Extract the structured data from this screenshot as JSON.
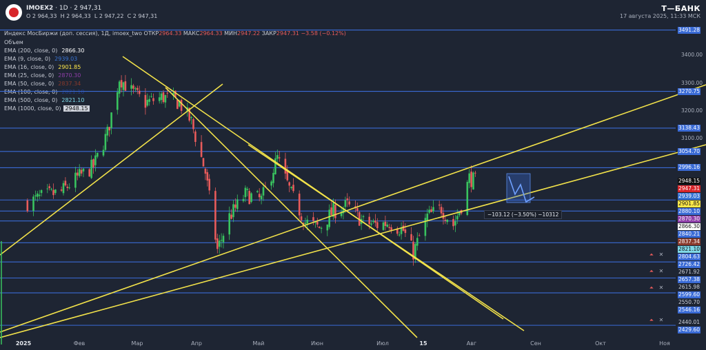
{
  "header": {
    "symbol": "IMOEX2",
    "interval": "1D",
    "last": "2 947,31",
    "open": "О 2 964,33",
    "high": "H 2 964,33",
    "low": "L 2 947,22",
    "close": "C 2 947,31",
    "brand": "Т—БАНК",
    "datetime": "17 августа 2025, 11:33 МСК"
  },
  "info": {
    "name": "Индекс МосБиржи (доп. сессия), 1Д, imoex_two",
    "open_label": "ОТКР",
    "open_value": "2964.33",
    "high_label": "МАКС",
    "high_value": "2964.33",
    "low_label": "МИН",
    "low_value": "2947.22",
    "close_label": "ЗАКР",
    "close_value": "2947.31",
    "change": "−3.58 (−0.12%)"
  },
  "legend": [
    {
      "label": "Объем",
      "value": "",
      "color": "#c8ccd6"
    },
    {
      "label": "EMA (200, close, 0)",
      "value": "2866.30",
      "color": "#ffffff"
    },
    {
      "label": "EMA (9, close, 0)",
      "value": "2939.03",
      "color": "#3a76d6"
    },
    {
      "label": "EMA (16, close, 0)",
      "value": "2901.85",
      "color": "#ffe94a"
    },
    {
      "label": "EMA (25, close, 0)",
      "value": "2870.30",
      "color": "#8e3ea8"
    },
    {
      "label": "EMA (50, close, 0)",
      "value": "2837.34",
      "color": "#8a3a2c"
    },
    {
      "label": "EMA (100, close, 0)",
      "value": "2821.10",
      "color": "#1f3a8a"
    },
    {
      "label": "EMA (500, close, 0)",
      "value": "2821.10",
      "color": "#7fd9e8"
    },
    {
      "label": "EMA (1000, close, 0)",
      "value": "2948.15",
      "color": "#101010"
    }
  ],
  "y_ticks": [
    "3400.00",
    "3300.00",
    "3200.00",
    "3100.00"
  ],
  "price_labels": [
    {
      "value": "3491.28",
      "bg": "#3a6bd6"
    },
    {
      "value": "3270.75",
      "bg": "#3a6bd6"
    },
    {
      "value": "3138.43",
      "bg": "#3a6bd6"
    },
    {
      "value": "3054.70",
      "bg": "#3a6bd6"
    },
    {
      "value": "2996.16",
      "bg": "#3a6bd6"
    },
    {
      "value": "2948.15",
      "bg": "#101010"
    },
    {
      "value": "2947.31",
      "bg": "#d8262a"
    },
    {
      "value": "2939.03",
      "bg": "#3a76d6"
    },
    {
      "value": "2901.85",
      "bg": "#ffe94a"
    },
    {
      "value": "2880.10",
      "bg": "#3a6bd6"
    },
    {
      "value": "2870.30",
      "bg": "#8e3ea8"
    },
    {
      "value": "2866.30",
      "bg": "#ffffff"
    },
    {
      "value": "2840.21",
      "bg": "#3a6bd6"
    },
    {
      "value": "2837.34",
      "bg": "#8a3a2c"
    },
    {
      "value": "2821.10",
      "bg": "#7fd9e8"
    },
    {
      "value": "2804.63",
      "bg": "#3a6bd6"
    },
    {
      "value": "2726.42",
      "bg": "#3a6bd6"
    },
    {
      "value": "2671.92",
      "bg": "#1e2533"
    },
    {
      "value": "2657.38",
      "bg": "#3a6bd6"
    },
    {
      "value": "2615.98",
      "bg": "#1e2533"
    },
    {
      "value": "2599.60",
      "bg": "#3a6bd6"
    },
    {
      "value": "2550.70",
      "bg": "#1e2533"
    },
    {
      "value": "2546.16",
      "bg": "#3a6bd6"
    },
    {
      "value": "2440.01",
      "bg": "#1e2533"
    },
    {
      "value": "2429.60",
      "bg": "#3a6bd6"
    }
  ],
  "measure_label": "−103.12 (−3.50%) −10312",
  "colors": {
    "bg": "#1e2533",
    "up": "#39c45f",
    "down": "#e85b5b",
    "hline": "#3a6bd6",
    "trend": "#f2e24a"
  },
  "chart_data": {
    "type": "candlestick",
    "symbol": "IMOEX2",
    "y_range": [
      2420,
      3500
    ],
    "x_labels": [
      "2025",
      "Фев",
      "Мар",
      "Апр",
      "Май",
      "Июн",
      "Июл",
      "15",
      "Авг",
      "Сен",
      "Окт",
      "Ноя"
    ],
    "horizontal_levels": [
      3491.28,
      3270.75,
      3138.43,
      3054.7,
      2996.16,
      2880.1,
      2840.21,
      2804.63,
      2726.42,
      2657.38,
      2599.6,
      2546.16,
      2429.6
    ],
    "close_path": [
      {
        "date": "2025-01-03",
        "close": 2870
      },
      {
        "date": "2025-01-10",
        "close": 2890
      },
      {
        "date": "2025-01-20",
        "close": 2910
      },
      {
        "date": "2025-01-28",
        "close": 2960
      },
      {
        "date": "2025-02-05",
        "close": 3000
      },
      {
        "date": "2025-02-12",
        "close": 3120
      },
      {
        "date": "2025-02-18",
        "close": 3320
      },
      {
        "date": "2025-02-24",
        "close": 3270
      },
      {
        "date": "2025-03-03",
        "close": 3230
      },
      {
        "date": "2025-03-12",
        "close": 3250
      },
      {
        "date": "2025-03-20",
        "close": 3230
      },
      {
        "date": "2025-03-26",
        "close": 3160
      },
      {
        "date": "2025-04-02",
        "close": 2980
      },
      {
        "date": "2025-04-08",
        "close": 2700
      },
      {
        "date": "2025-04-14",
        "close": 2820
      },
      {
        "date": "2025-04-22",
        "close": 2900
      },
      {
        "date": "2025-04-30",
        "close": 2880
      },
      {
        "date": "2025-05-08",
        "close": 3030
      },
      {
        "date": "2025-05-15",
        "close": 2900
      },
      {
        "date": "2025-05-22",
        "close": 2800
      },
      {
        "date": "2025-05-29",
        "close": 2780
      },
      {
        "date": "2025-06-05",
        "close": 2840
      },
      {
        "date": "2025-06-12",
        "close": 2860
      },
      {
        "date": "2025-06-20",
        "close": 2800
      },
      {
        "date": "2025-06-27",
        "close": 2790
      },
      {
        "date": "2025-07-03",
        "close": 2800
      },
      {
        "date": "2025-07-10",
        "close": 2770
      },
      {
        "date": "2025-07-15",
        "close": 2690
      },
      {
        "date": "2025-07-22",
        "close": 2820
      },
      {
        "date": "2025-07-29",
        "close": 2850
      },
      {
        "date": "2025-08-04",
        "close": 2790
      },
      {
        "date": "2025-08-08",
        "close": 2860
      },
      {
        "date": "2025-08-12",
        "close": 2960
      },
      {
        "date": "2025-08-15",
        "close": 2947
      }
    ]
  }
}
